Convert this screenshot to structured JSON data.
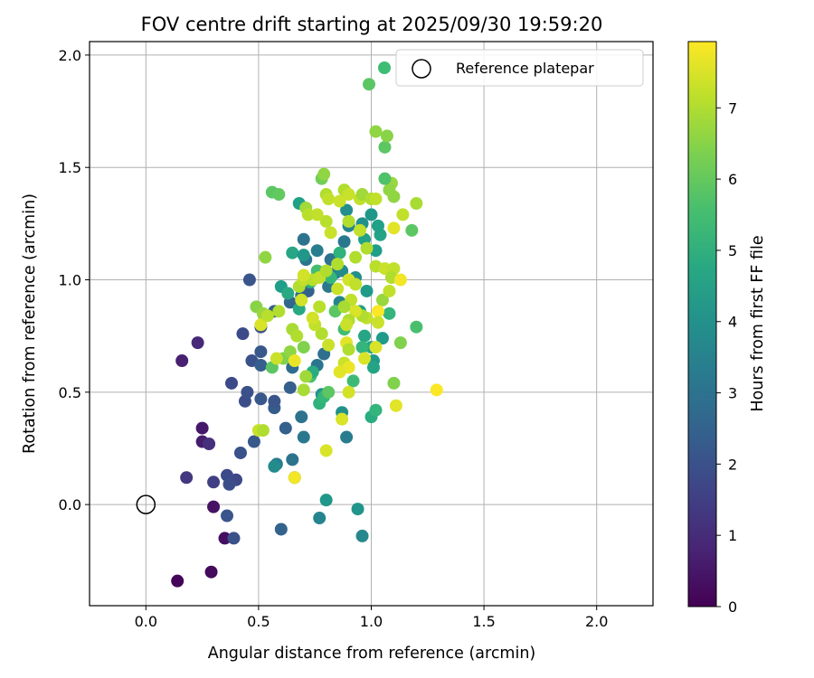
{
  "chart_data": {
    "type": "scatter",
    "title": "FOV centre drift starting at 2025/09/30 19:59:20",
    "xlabel": "Angular distance from reference (arcmin)",
    "ylabel": "Rotation from reference (arcmin)",
    "xlim": [
      -0.25,
      2.25
    ],
    "ylim": [
      -0.45,
      2.06
    ],
    "xticks": [
      0.0,
      0.5,
      1.0,
      1.5,
      2.0
    ],
    "xtick_labels": [
      "0.0",
      "0.5",
      "1.0",
      "1.5",
      "2.0"
    ],
    "yticks": [
      0.0,
      0.5,
      1.0,
      1.5,
      2.0
    ],
    "ytick_labels": [
      "0.0",
      "0.5",
      "1.0",
      "1.5",
      "2.0"
    ],
    "grid": true,
    "legend": {
      "position": "top-right",
      "label": "Reference platepar",
      "marker_color": "#3dbc74"
    },
    "reference_point": {
      "x": 0.0,
      "y": 0.0
    },
    "colorbar": {
      "label": "Hours from first FF file",
      "vmin": 0,
      "vmax": 7.93,
      "ticks": [
        0,
        1,
        2,
        3,
        4,
        5,
        6,
        7
      ],
      "tick_labels": [
        "0",
        "1",
        "2",
        "3",
        "4",
        "5",
        "6",
        "7"
      ]
    },
    "points": [
      [
        0.14,
        -0.34,
        0.1
      ],
      [
        0.29,
        -0.3,
        0.2
      ],
      [
        0.35,
        -0.15,
        0.3
      ],
      [
        0.3,
        -0.01,
        0.4
      ],
      [
        0.25,
        0.34,
        0.5
      ],
      [
        0.25,
        0.28,
        0.6
      ],
      [
        0.16,
        0.64,
        0.7
      ],
      [
        0.23,
        0.72,
        0.9
      ],
      [
        0.28,
        0.27,
        1.1
      ],
      [
        0.18,
        0.12,
        1.3
      ],
      [
        0.3,
        0.1,
        1.5
      ],
      [
        0.4,
        0.11,
        1.7
      ],
      [
        0.36,
        0.13,
        1.8
      ],
      [
        0.37,
        0.09,
        1.9
      ],
      [
        0.39,
        -0.15,
        2.0
      ],
      [
        0.36,
        -0.05,
        2.1
      ],
      [
        0.42,
        0.23,
        2.0
      ],
      [
        0.48,
        0.28,
        2.2
      ],
      [
        0.38,
        0.54,
        1.8
      ],
      [
        0.44,
        0.46,
        1.9
      ],
      [
        0.45,
        0.5,
        2.0
      ],
      [
        0.43,
        0.76,
        1.8
      ],
      [
        0.47,
        0.64,
        2.0
      ],
      [
        0.51,
        0.68,
        2.2
      ],
      [
        0.51,
        0.62,
        2.4
      ],
      [
        0.51,
        0.47,
        2.2
      ],
      [
        0.57,
        0.43,
        2.3
      ],
      [
        0.57,
        0.46,
        2.1
      ],
      [
        0.62,
        0.34,
        2.4
      ],
      [
        0.6,
        -0.11,
        2.5
      ],
      [
        0.65,
        0.2,
        3.0
      ],
      [
        0.58,
        0.18,
        3.3
      ],
      [
        0.66,
        0.12,
        3.6
      ],
      [
        0.57,
        0.17,
        3.8
      ],
      [
        0.64,
        0.52,
        2.4
      ],
      [
        0.65,
        0.61,
        2.8
      ],
      [
        0.69,
        0.39,
        3.0
      ],
      [
        0.7,
        0.3,
        3.2
      ],
      [
        0.76,
        0.62,
        3.1
      ],
      [
        0.79,
        0.67,
        2.9
      ],
      [
        0.78,
        0.49,
        4.1
      ],
      [
        0.77,
        -0.06,
        3.6
      ],
      [
        0.8,
        0.02,
        4.2
      ],
      [
        0.89,
        0.3,
        3.3
      ],
      [
        0.87,
        0.41,
        4.0
      ],
      [
        0.94,
        -0.02,
        4.1
      ],
      [
        0.96,
        -0.14,
        3.7
      ],
      [
        0.46,
        1.0,
        2.1
      ],
      [
        0.51,
        0.79,
        2.0
      ],
      [
        0.57,
        0.86,
        2.4
      ],
      [
        0.64,
        0.9,
        2.6
      ],
      [
        0.69,
        0.93,
        2.9
      ],
      [
        0.72,
        0.95,
        2.5
      ],
      [
        0.71,
        1.09,
        3.1
      ],
      [
        0.7,
        1.18,
        3.0
      ],
      [
        0.68,
        1.34,
        4.5
      ],
      [
        0.76,
        1.13,
        3.4
      ],
      [
        0.81,
        0.97,
        3.2
      ],
      [
        0.84,
        1.03,
        3.5
      ],
      [
        0.86,
        0.9,
        3.6
      ],
      [
        0.87,
        1.04,
        3.8
      ],
      [
        0.82,
        1.09,
        3.0
      ],
      [
        0.88,
        1.17,
        3.2
      ],
      [
        0.9,
        1.24,
        3.6
      ],
      [
        0.89,
        1.31,
        3.9
      ],
      [
        0.96,
        1.25,
        4.0
      ],
      [
        0.97,
        1.18,
        4.5
      ],
      [
        1.0,
        1.29,
        4.2
      ],
      [
        1.02,
        1.13,
        4.4
      ],
      [
        1.04,
        1.2,
        4.6
      ],
      [
        1.03,
        1.24,
        4.5
      ],
      [
        0.93,
        1.01,
        3.9
      ],
      [
        0.98,
        0.95,
        4.3
      ],
      [
        0.95,
        0.86,
        4.5
      ],
      [
        0.97,
        0.75,
        4.7
      ],
      [
        1.0,
        0.7,
        4.6
      ],
      [
        1.01,
        0.64,
        4.3
      ],
      [
        1.01,
        0.61,
        4.6
      ],
      [
        1.0,
        0.39,
        4.9
      ],
      [
        1.02,
        0.42,
        5.2
      ],
      [
        0.92,
        0.55,
        5.4
      ],
      [
        0.96,
        0.7,
        5.2
      ],
      [
        1.05,
        0.74,
        4.3
      ],
      [
        1.08,
        0.85,
        5.2
      ],
      [
        0.73,
        0.57,
        5.6
      ],
      [
        0.74,
        0.59,
        4.9
      ],
      [
        0.77,
        0.45,
        5.1
      ],
      [
        0.79,
        0.48,
        5.3
      ],
      [
        0.6,
        0.97,
        4.4
      ],
      [
        0.63,
        0.94,
        4.8
      ],
      [
        0.65,
        1.12,
        4.7
      ],
      [
        0.7,
        1.11,
        4.2
      ],
      [
        0.68,
        0.87,
        4.8
      ],
      [
        0.73,
        0.99,
        5.0
      ],
      [
        0.76,
        1.04,
        5.5
      ],
      [
        0.82,
        1.01,
        5.3
      ],
      [
        0.86,
        1.12,
        5.1
      ],
      [
        0.88,
        0.78,
        5.5
      ],
      [
        0.84,
        0.86,
        5.9
      ],
      [
        0.81,
        0.5,
        5.9
      ],
      [
        0.99,
        1.87,
        5.9
      ],
      [
        1.06,
        1.59,
        5.9
      ],
      [
        1.07,
        1.64,
        6.5
      ],
      [
        1.02,
        1.66,
        6.6
      ],
      [
        1.09,
        1.43,
        6.7
      ],
      [
        1.08,
        1.4,
        6.6
      ],
      [
        1.1,
        1.37,
        6.6
      ],
      [
        1.06,
        1.45,
        5.7
      ],
      [
        1.18,
        1.22,
        5.9
      ],
      [
        1.2,
        0.79,
        5.6
      ],
      [
        1.13,
        0.72,
        6.4
      ],
      [
        1.1,
        0.54,
        6.4
      ],
      [
        1.05,
        0.91,
        6.7
      ],
      [
        0.56,
        1.39,
        5.9
      ],
      [
        0.59,
        1.38,
        6.0
      ],
      [
        0.53,
        1.1,
        6.6
      ],
      [
        0.49,
        0.88,
        6.5
      ],
      [
        0.52,
        0.85,
        6.7
      ],
      [
        0.56,
        0.61,
        5.9
      ],
      [
        0.61,
        0.65,
        6.4
      ],
      [
        0.64,
        0.68,
        6.6
      ],
      [
        0.65,
        0.78,
        6.9
      ],
      [
        0.7,
        0.7,
        6.4
      ],
      [
        0.7,
        0.51,
        6.9
      ],
      [
        0.71,
        0.57,
        6.8
      ],
      [
        0.67,
        0.75,
        7.0
      ],
      [
        0.68,
        0.97,
        7.0
      ],
      [
        0.7,
        1.0,
        7.2
      ],
      [
        0.71,
        1.32,
        6.8
      ],
      [
        0.78,
        1.45,
        6.2
      ],
      [
        0.79,
        1.47,
        6.6
      ],
      [
        0.8,
        1.38,
        7.0
      ],
      [
        0.81,
        1.36,
        7.2
      ],
      [
        0.8,
        1.26,
        7.1
      ],
      [
        0.82,
        1.21,
        7.3
      ],
      [
        0.86,
        1.35,
        7.3
      ],
      [
        0.88,
        1.4,
        7.0
      ],
      [
        0.9,
        1.38,
        7.3
      ],
      [
        0.95,
        1.36,
        7.2
      ],
      [
        0.96,
        1.38,
        6.8
      ],
      [
        1.0,
        1.36,
        7.0
      ],
      [
        1.02,
        1.36,
        7.2
      ],
      [
        1.1,
        1.23,
        7.6
      ],
      [
        1.14,
        1.29,
        7.2
      ],
      [
        1.2,
        1.34,
        6.9
      ],
      [
        0.9,
        1.26,
        7.0
      ],
      [
        0.93,
        1.1,
        7.0
      ],
      [
        0.95,
        1.22,
        7.2
      ],
      [
        0.98,
        1.14,
        7.0
      ],
      [
        1.02,
        1.06,
        7.1
      ],
      [
        1.06,
        1.05,
        7.3
      ],
      [
        1.1,
        1.05,
        7.2
      ],
      [
        1.09,
        1.01,
        7.0
      ],
      [
        1.13,
        1.0,
        7.8
      ],
      [
        1.08,
        0.95,
        7.2
      ],
      [
        1.03,
        0.86,
        7.9
      ],
      [
        1.03,
        0.81,
        7.3
      ],
      [
        0.98,
        0.83,
        7.2
      ],
      [
        0.96,
        0.84,
        7.0
      ],
      [
        0.93,
        0.86,
        7.5
      ],
      [
        0.91,
        0.91,
        7.2
      ],
      [
        0.9,
        0.82,
        7.0
      ],
      [
        0.89,
        0.8,
        7.3
      ],
      [
        0.89,
        0.72,
        7.6
      ],
      [
        0.9,
        0.69,
        7.0
      ],
      [
        0.88,
        0.63,
        7.3
      ],
      [
        0.9,
        0.61,
        7.7
      ],
      [
        0.86,
        0.59,
        7.6
      ],
      [
        0.87,
        0.38,
        7.5
      ],
      [
        0.9,
        0.5,
        7.4
      ],
      [
        0.97,
        0.65,
        7.5
      ],
      [
        1.02,
        0.7,
        7.5
      ],
      [
        1.11,
        0.44,
        7.6
      ],
      [
        1.29,
        0.51,
        7.9
      ],
      [
        0.81,
        0.71,
        7.3
      ],
      [
        0.78,
        0.76,
        7.0
      ],
      [
        0.75,
        0.8,
        7.2
      ],
      [
        0.74,
        0.83,
        7.4
      ],
      [
        0.77,
        0.88,
        7.1
      ],
      [
        0.74,
        1.0,
        7.1
      ],
      [
        0.77,
        1.01,
        7.2
      ],
      [
        0.8,
        1.04,
        7.0
      ],
      [
        0.85,
        0.96,
        7.3
      ],
      [
        0.85,
        1.07,
        7.0
      ],
      [
        0.9,
        1.0,
        7.4
      ],
      [
        0.93,
        0.98,
        7.2
      ],
      [
        0.88,
        0.88,
        6.9
      ],
      [
        0.58,
        0.65,
        7.3
      ],
      [
        0.59,
        0.86,
        7.0
      ],
      [
        0.51,
        0.8,
        7.5
      ],
      [
        0.54,
        0.84,
        7.1
      ],
      [
        0.5,
        0.33,
        7.3
      ],
      [
        0.52,
        0.33,
        7.0
      ],
      [
        0.66,
        0.12,
        7.8
      ],
      [
        0.8,
        0.24,
        7.5
      ],
      [
        0.66,
        0.64,
        7.7
      ],
      [
        0.69,
        0.91,
        7.4
      ],
      [
        0.7,
        1.02,
        7.4
      ],
      [
        0.72,
        1.29,
        7.1
      ],
      [
        0.76,
        1.29,
        7.2
      ]
    ]
  }
}
